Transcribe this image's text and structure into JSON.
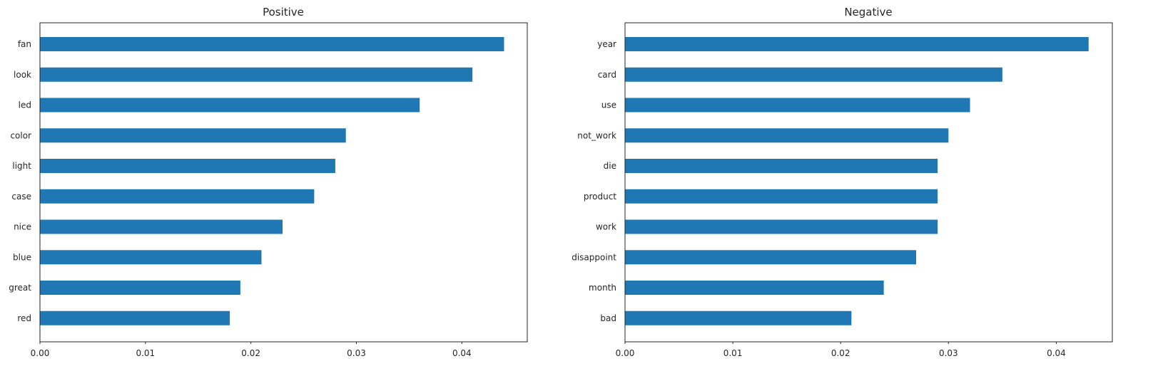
{
  "chart_data": [
    {
      "type": "bar",
      "orientation": "horizontal",
      "title": "Positive",
      "categories": [
        "fan",
        "look",
        "led",
        "color",
        "light",
        "case",
        "nice",
        "blue",
        "great",
        "red"
      ],
      "values": [
        0.044,
        0.041,
        0.036,
        0.029,
        0.028,
        0.026,
        0.023,
        0.021,
        0.019,
        0.018
      ],
      "xlim": [
        0,
        0.0462
      ],
      "xticks": [
        "0.00",
        "0.01",
        "0.02",
        "0.03",
        "0.04"
      ],
      "grid": false,
      "bar_color": "#1f77b4"
    },
    {
      "type": "bar",
      "orientation": "horizontal",
      "title": "Negative",
      "categories": [
        "year",
        "card",
        "use",
        "not_work",
        "die",
        "product",
        "work",
        "disappoint",
        "month",
        "bad"
      ],
      "values": [
        0.043,
        0.035,
        0.032,
        0.03,
        0.029,
        0.029,
        0.029,
        0.027,
        0.024,
        0.021
      ],
      "xlim": [
        0,
        0.0452
      ],
      "xticks": [
        "0.00",
        "0.01",
        "0.02",
        "0.03",
        "0.04"
      ],
      "grid": false,
      "bar_color": "#1f77b4"
    }
  ]
}
